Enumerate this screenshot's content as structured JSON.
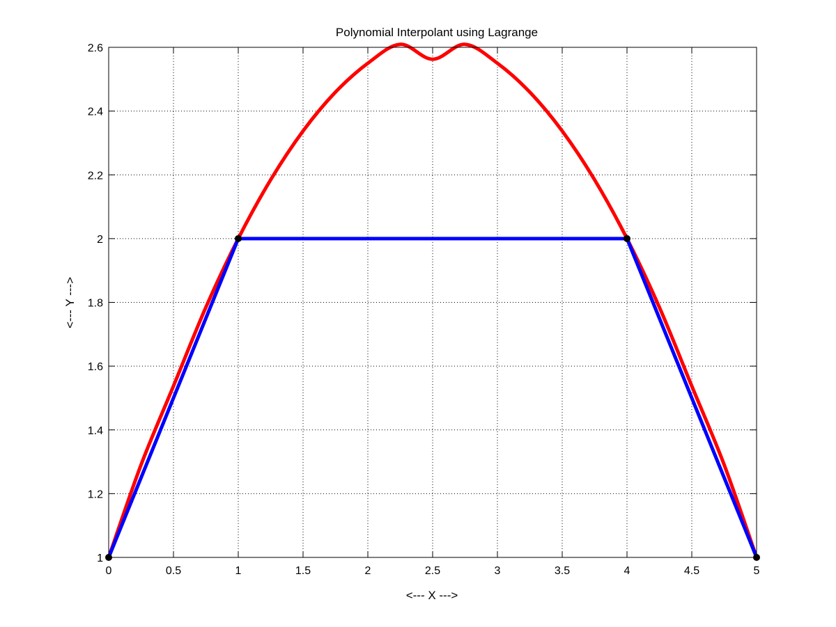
{
  "chart_data": {
    "type": "line",
    "title": "Polynomial Interpolant using Lagrange",
    "xlabel": "<--- X --->",
    "ylabel": "<--- Y --->",
    "xlim": [
      0,
      5
    ],
    "ylim": [
      1,
      2.6
    ],
    "xticks": [
      0,
      0.5,
      1,
      1.5,
      2,
      2.5,
      3,
      3.5,
      4,
      4.5,
      5
    ],
    "xtick_labels": [
      "0",
      "0.5",
      "1",
      "1.5",
      "2",
      "2.5",
      "3",
      "3.5",
      "4",
      "4.5",
      "5"
    ],
    "yticks": [
      1,
      1.2,
      1.4,
      1.6,
      1.8,
      2,
      2.2,
      2.4,
      2.6
    ],
    "ytick_labels": [
      "1",
      "1.2",
      "1.4",
      "1.6",
      "1.8",
      "2",
      "2.2",
      "2.4",
      "2.6"
    ],
    "grid": true,
    "series": [
      {
        "color": "#ff0000",
        "x": [
          0,
          0.25,
          0.5,
          0.75,
          1,
          1.25,
          1.5,
          1.75,
          2,
          2.25,
          2.5,
          2.75,
          3,
          3.25,
          3.5,
          3.75,
          4,
          4.25,
          4.5,
          4.75,
          5
        ],
        "y": [
          1,
          1.2906,
          1.5375,
          1.7844,
          2,
          2.1844,
          2.3375,
          2.4594,
          2.55,
          2.6094,
          2.5625,
          2.6094,
          2.55,
          2.4594,
          2.3375,
          2.1844,
          2,
          1.7844,
          1.5375,
          1.2906,
          1
        ]
      },
      {
        "color": "#0000ff",
        "x": [
          0,
          1,
          4,
          5
        ],
        "y": [
          1,
          2,
          2,
          1
        ]
      }
    ],
    "markers": {
      "color": "#000000",
      "x": [
        0,
        1,
        4,
        5
      ],
      "y": [
        1,
        2,
        2,
        1
      ]
    }
  }
}
